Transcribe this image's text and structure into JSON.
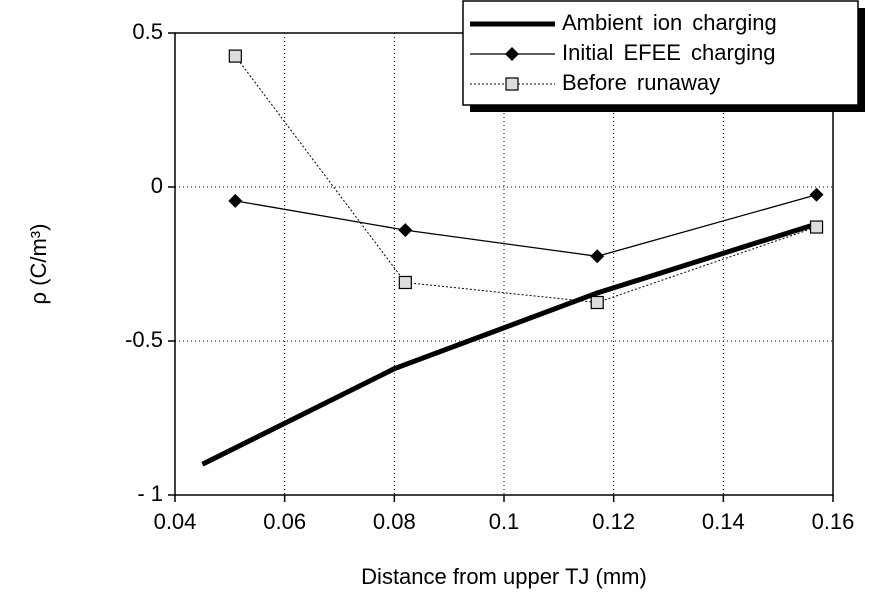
{
  "chart_data": {
    "type": "line",
    "xlabel": "Distance from upper TJ (mm)",
    "ylabel": "ρ (C/m³)",
    "xlim": [
      0.04,
      0.16
    ],
    "xticks": [
      0.04,
      0.06,
      0.08,
      0.1,
      0.12,
      0.14,
      0.16
    ],
    "ylim": [
      -1,
      0.5
    ],
    "yticks": [
      0.5,
      0,
      -0.5,
      {
        "value": -1,
        "label": "- 1"
      }
    ],
    "grid": true,
    "legend": "upper right",
    "series": [
      {
        "name": "Ambient ion charging",
        "color": "#000000",
        "x": [
          0.045,
          0.08,
          0.117,
          0.157
        ],
        "values": [
          -0.9,
          -0.59,
          -0.344,
          -0.12
        ]
      },
      {
        "name": "Initial EFEE charging",
        "color": "#000000",
        "x": [
          0.051,
          0.082,
          0.117,
          0.157
        ],
        "values": [
          -0.045,
          -0.14,
          -0.225,
          -0.025
        ]
      },
      {
        "name": "Before runaway",
        "color": "#000000",
        "x": [
          0.051,
          0.082,
          0.117,
          0.157
        ],
        "values": [
          0.425,
          -0.31,
          -0.375,
          -0.13
        ]
      }
    ]
  }
}
